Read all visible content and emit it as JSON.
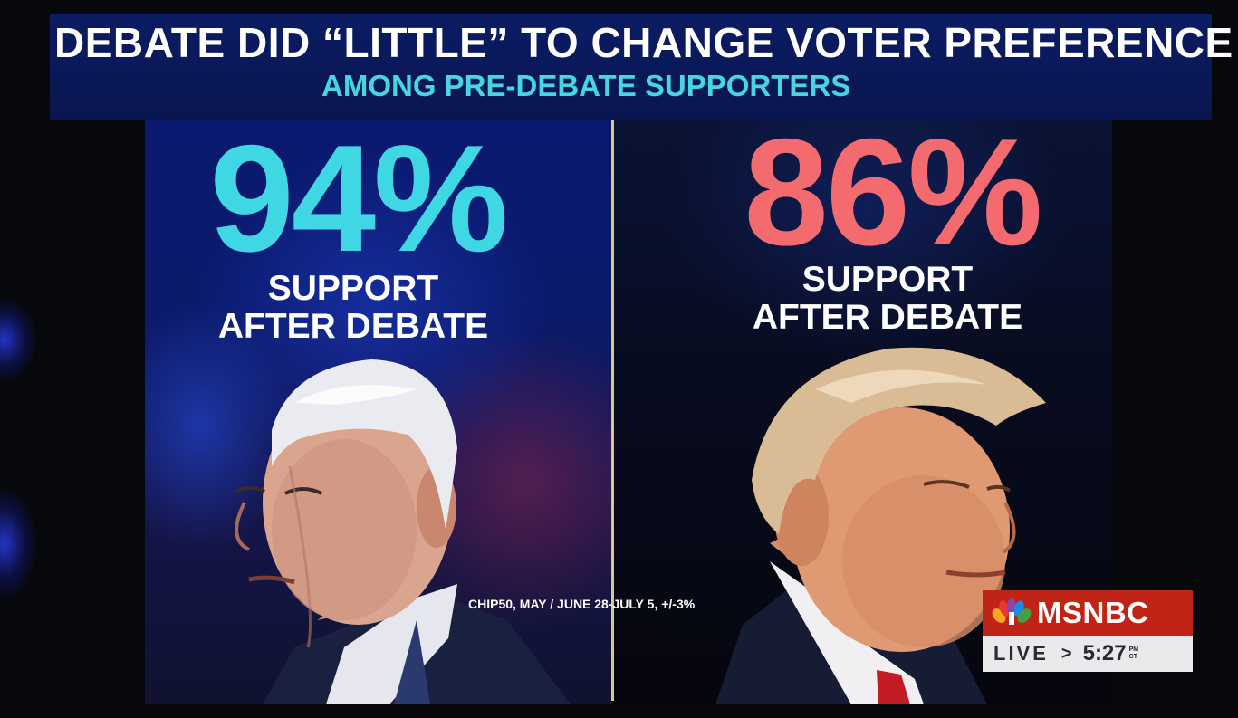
{
  "header": {
    "title": "DEBATE DID “LITTLE” TO CHANGE VOTER PREFERENCE",
    "subtitle": "AMONG PRE-DEBATE SUPPORTERS"
  },
  "left_stat": {
    "percent": "94%",
    "label_line1": "SUPPORT",
    "label_line2": "AFTER DEBATE",
    "color": "#3fd7e3"
  },
  "right_stat": {
    "percent": "86%",
    "label_line1": "SUPPORT",
    "label_line2": "AFTER DEBATE",
    "color": "#f36b6e"
  },
  "source_note": "CHIP50, MAY / JUNE 28-JULY 5, +/-3%",
  "network_bug": {
    "network": "MSNBC",
    "live_label": "LIVE",
    "separator": ">",
    "time": "5:27",
    "time_suffix_top": "PM",
    "time_suffix_bottom": "CT",
    "brand_color": "#bf2417"
  },
  "icons": [
    "peacock-logo-icon"
  ]
}
